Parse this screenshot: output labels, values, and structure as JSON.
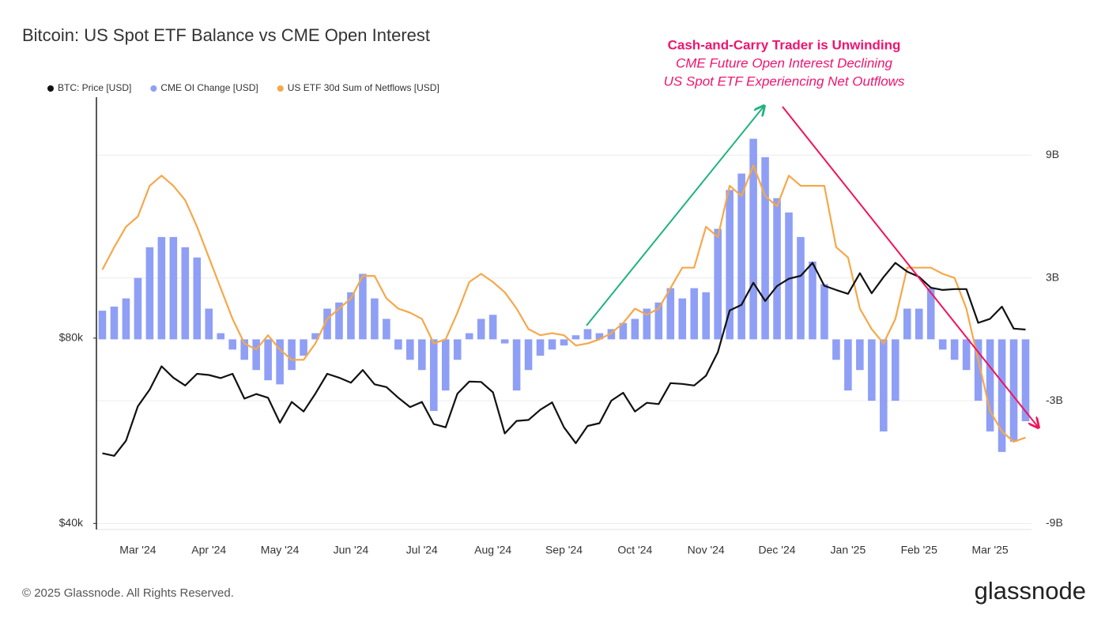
{
  "title": "Bitcoin: US Spot ETF Balance vs CME Open Interest",
  "annotation_title": "Cash-and-Carry Trader is Unwinding",
  "annotation_lines": [
    "CME Future Open Interest Declining",
    "US Spot ETF Experiencing Net Outflows"
  ],
  "footer": "© 2025 Glassnode. All Rights Reserved.",
  "brand": "glassnode",
  "chart_data": {
    "type": "combo",
    "categories": [
      null,
      null,
      null,
      "Mar '24",
      null,
      null,
      null,
      null,
      null,
      "Apr '24",
      null,
      null,
      null,
      null,
      null,
      "May '24",
      null,
      null,
      null,
      null,
      null,
      "Jun '24",
      null,
      null,
      null,
      null,
      null,
      "Jul '24",
      null,
      null,
      null,
      null,
      null,
      "Aug '24",
      null,
      null,
      null,
      null,
      null,
      "Sep '24",
      null,
      null,
      null,
      null,
      null,
      "Oct '24",
      null,
      null,
      null,
      null,
      null,
      "Nov '24",
      null,
      null,
      null,
      null,
      null,
      "Dec '24",
      null,
      null,
      null,
      null,
      null,
      "Jan '25",
      null,
      null,
      null,
      null,
      null,
      "Feb '25",
      null,
      null,
      null,
      null,
      null,
      "Mar '25",
      null,
      null,
      null
    ],
    "ylim": [
      39100,
      197000
    ],
    "log_y": true,
    "yticks": [
      {
        "value": 40000,
        "label": "$40k"
      },
      {
        "value": 80000,
        "label": "$80k"
      }
    ],
    "y2lim": [
      -9290000000,
      11830000000
    ],
    "y2ticks": [
      {
        "value": 9000000000,
        "label": "9B"
      },
      {
        "value": 3000000000,
        "label": "3B"
      },
      {
        "value": -3000000000,
        "label": "-3B"
      },
      {
        "value": -9000000000,
        "label": "-9B"
      }
    ],
    "grid": true,
    "series": [
      {
        "name": "BTC: Price [USD]",
        "type": "line",
        "color": "#111111",
        "axis": "y",
        "values": [
          52000,
          51500,
          54500,
          62000,
          66000,
          72000,
          69000,
          67000,
          70000,
          69700,
          68900,
          70000,
          63800,
          64900,
          64000,
          58300,
          63000,
          60800,
          65000,
          70000,
          69000,
          67700,
          71000,
          67300,
          66600,
          64000,
          61800,
          63000,
          58000,
          57300,
          65000,
          68000,
          67900,
          65300,
          56000,
          58700,
          58900,
          61200,
          62900,
          57300,
          54000,
          57600,
          58200,
          63300,
          65200,
          60800,
          62800,
          62500,
          67600,
          67400,
          67000,
          69500,
          75900,
          88700,
          90600,
          98400,
          91900,
          97200,
          99900,
          101000,
          106000,
          97300,
          95800,
          94400,
          102000,
          94600,
          100500,
          106000,
          102600,
          100600,
          96600,
          95800,
          96100,
          96100,
          84700,
          86000,
          90000,
          82900,
          82600
        ]
      },
      {
        "name": "CME OI Change [USD]",
        "type": "bar",
        "color": "#8f9ff5",
        "axis": "y2",
        "values": [
          1400000000,
          1600000000,
          2000000000,
          3000000000,
          4500000000,
          5000000000,
          5000000000,
          4500000000,
          4000000000,
          1500000000,
          300000000,
          -500000000,
          -1000000000,
          -1500000000,
          -2000000000,
          -2200000000,
          -1500000000,
          -800000000,
          300000000,
          1500000000,
          1800000000,
          2300000000,
          3200000000,
          2000000000,
          1000000000,
          -500000000,
          -1000000000,
          -1500000000,
          -3500000000,
          -2500000000,
          -1000000000,
          300000000,
          1000000000,
          1200000000,
          -200000000,
          -2500000000,
          -1500000000,
          -800000000,
          -500000000,
          -300000000,
          200000000,
          500000000,
          300000000,
          500000000,
          800000000,
          1000000000,
          1500000000,
          1800000000,
          2500000000,
          2000000000,
          2500000000,
          2300000000,
          5400000000,
          7300000000,
          8100000000,
          9800000000,
          8900000000,
          6900000000,
          6200000000,
          5000000000,
          3800000000,
          2700000000,
          -1000000000,
          -2500000000,
          -1500000000,
          -3000000000,
          -4500000000,
          -3000000000,
          1500000000,
          1500000000,
          2500000000,
          -500000000,
          -1000000000,
          -1500000000,
          -3000000000,
          -4500000000,
          -5500000000,
          -5000000000,
          -4000000000
        ]
      },
      {
        "name": "US ETF 30d Sum of Netflows [USD]",
        "type": "line",
        "color": "#f5a84a",
        "axis": "y2",
        "values": [
          3400000000,
          4500000000,
          5500000000,
          6000000000,
          7500000000,
          8000000000,
          7500000000,
          6800000000,
          5500000000,
          4000000000,
          2500000000,
          1000000000,
          -200000000,
          -500000000,
          200000000,
          -500000000,
          -1000000000,
          -1000000000,
          -200000000,
          1000000000,
          1500000000,
          2000000000,
          3100000000,
          3100000000,
          2000000000,
          1500000000,
          1300000000,
          1000000000,
          -200000000,
          0,
          1300000000,
          2800000000,
          3200000000,
          2800000000,
          2300000000,
          1500000000,
          500000000,
          200000000,
          300000000,
          200000000,
          -300000000,
          -200000000,
          0,
          300000000,
          800000000,
          1500000000,
          1200000000,
          1500000000,
          2500000000,
          3500000000,
          3500000000,
          5500000000,
          5000000000,
          7500000000,
          7000000000,
          8500000000,
          7000000000,
          6500000000,
          8000000000,
          7500000000,
          7500000000,
          7500000000,
          4500000000,
          4000000000,
          1500000000,
          500000000,
          -200000000,
          1000000000,
          3500000000,
          3500000000,
          3500000000,
          3200000000,
          3000000000,
          1500000000,
          -1000000000,
          -3500000000,
          -4500000000,
          -5000000000,
          -4800000000
        ]
      }
    ]
  }
}
